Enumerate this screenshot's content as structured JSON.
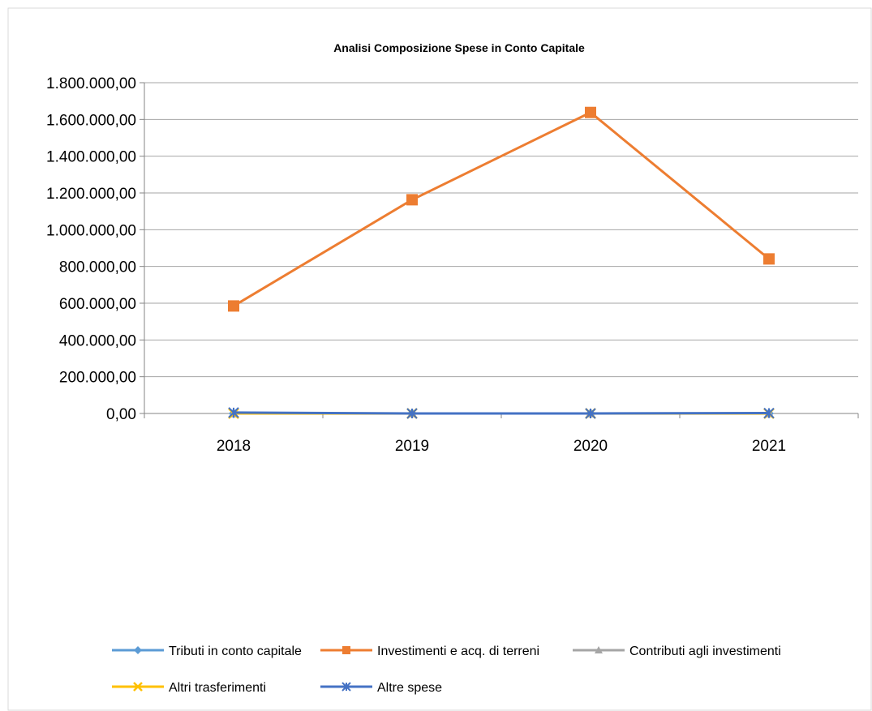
{
  "chart_data": {
    "type": "line",
    "title": "Analisi Composizione Spese in Conto Capitale",
    "categories": [
      "2018",
      "2019",
      "2020",
      "2021"
    ],
    "ylim": [
      0,
      1800000
    ],
    "yticks": [
      0,
      200000,
      400000,
      600000,
      800000,
      1000000,
      1200000,
      1400000,
      1600000,
      1800000
    ],
    "ytick_labels": [
      "0,00",
      "200.000,00",
      "400.000,00",
      "600.000,00",
      "800.000,00",
      "1.000.000,00",
      "1.200.000,00",
      "1.400.000,00",
      "1.600.000,00",
      "1.800.000,00"
    ],
    "grid": true,
    "legend_position": "bottom",
    "series": [
      {
        "name": "Tributi in conto capitale",
        "values": [
          0,
          0,
          0,
          0
        ],
        "color": "#5B9BD5",
        "marker": "diamond"
      },
      {
        "name": "Investimenti e acq. di terreni",
        "values": [
          585000,
          1163000,
          1638000,
          841000
        ],
        "color": "#ED7D31",
        "marker": "square"
      },
      {
        "name": "Contributi agli investimenti",
        "values": [
          0,
          0,
          0,
          0
        ],
        "color": "#A5A5A5",
        "marker": "triangle"
      },
      {
        "name": "Altri trasferimenti",
        "values": [
          0,
          0,
          0,
          0
        ],
        "color": "#FFC000",
        "marker": "x"
      },
      {
        "name": "Altre spese",
        "values": [
          5000,
          0,
          0,
          2000
        ],
        "color": "#4472C4",
        "marker": "star"
      }
    ]
  }
}
